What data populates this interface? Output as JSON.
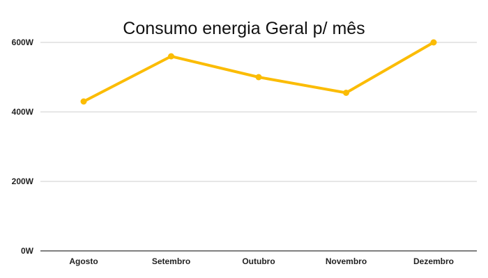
{
  "chart_data": {
    "type": "line",
    "title": "Consumo energia Geral p/ mês",
    "xlabel": "",
    "ylabel": "",
    "categories": [
      "Agosto",
      "Setembro",
      "Outubro",
      "Novembro",
      "Dezembro"
    ],
    "series": [
      {
        "values": [
          430,
          560,
          500,
          455,
          600
        ],
        "color": "#FBBC04"
      }
    ],
    "ylim": [
      0,
      600
    ],
    "yticks": [
      0,
      200,
      400,
      600
    ],
    "ytick_labels": [
      "0W",
      "200W",
      "400W",
      "600W"
    ],
    "grid": true,
    "legend": "none"
  }
}
